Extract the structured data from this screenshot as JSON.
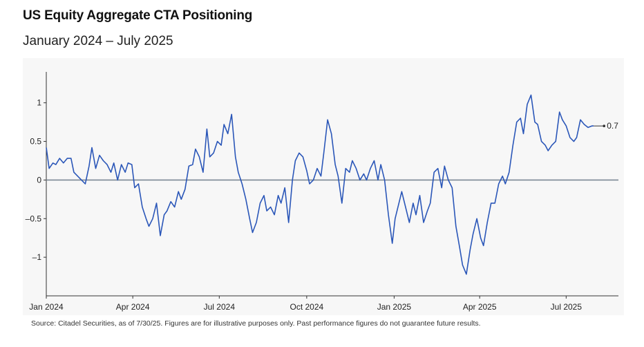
{
  "header": {
    "title": "US Equity Aggregate CTA Positioning",
    "subtitle": "January 2024 – July 2025"
  },
  "source": "Source: Citadel Securities, as of 7/30/25. Figures are for illustrative purposes only. Past performance figures do not guarantee future results.",
  "colors": {
    "line": "#2a56b8",
    "zero_line": "#7a8794",
    "axis": "#333333",
    "panel": "#f7f7f7"
  },
  "chart_data": {
    "type": "line",
    "title": "US Equity Aggregate CTA Positioning",
    "subtitle": "January 2024 – July 2025",
    "xlabel": "",
    "ylabel": "",
    "xlim": [
      "2024-01-01",
      "2025-08-25"
    ],
    "ylim": [
      -1.5,
      1.4
    ],
    "y_ticks": [
      {
        "value": 1,
        "label": "1"
      },
      {
        "value": 0.5,
        "label": "0.5"
      },
      {
        "value": 0,
        "label": "0"
      },
      {
        "value": -0.5,
        "label": "–0.5"
      },
      {
        "value": -1,
        "label": "–1"
      }
    ],
    "x_ticks": [
      {
        "date": "2024-01-01",
        "label": "Jan 2024"
      },
      {
        "date": "2024-04-01",
        "label": "Apr 2024"
      },
      {
        "date": "2024-07-01",
        "label": "Jul 2024"
      },
      {
        "date": "2024-10-01",
        "label": "Oct 2024"
      },
      {
        "date": "2025-01-01",
        "label": "Jan 2025"
      },
      {
        "date": "2025-04-01",
        "label": "Apr 2025"
      },
      {
        "date": "2025-07-01",
        "label": "Jul 2025"
      }
    ],
    "grid": false,
    "reference_line": 0,
    "end_label": {
      "text": "0.7",
      "value": 0.7
    },
    "series": [
      {
        "name": "",
        "points": [
          [
            "2024-01-01",
            0.42
          ],
          [
            "2024-01-04",
            0.15
          ],
          [
            "2024-01-08",
            0.22
          ],
          [
            "2024-01-11",
            0.2
          ],
          [
            "2024-01-15",
            0.28
          ],
          [
            "2024-01-19",
            0.22
          ],
          [
            "2024-01-23",
            0.28
          ],
          [
            "2024-01-27",
            0.28
          ],
          [
            "2024-01-30",
            0.1
          ],
          [
            "2024-02-03",
            0.05
          ],
          [
            "2024-02-07",
            0.0
          ],
          [
            "2024-02-11",
            -0.05
          ],
          [
            "2024-02-15",
            0.18
          ],
          [
            "2024-02-18",
            0.42
          ],
          [
            "2024-02-22",
            0.15
          ],
          [
            "2024-02-26",
            0.32
          ],
          [
            "2024-03-01",
            0.25
          ],
          [
            "2024-03-05",
            0.2
          ],
          [
            "2024-03-09",
            0.1
          ],
          [
            "2024-03-12",
            0.22
          ],
          [
            "2024-03-16",
            0.0
          ],
          [
            "2024-03-20",
            0.2
          ],
          [
            "2024-03-24",
            0.1
          ],
          [
            "2024-03-27",
            0.22
          ],
          [
            "2024-03-31",
            0.2
          ],
          [
            "2024-04-03",
            -0.1
          ],
          [
            "2024-04-07",
            -0.05
          ],
          [
            "2024-04-11",
            -0.35
          ],
          [
            "2024-04-15",
            -0.5
          ],
          [
            "2024-04-18",
            -0.6
          ],
          [
            "2024-04-22",
            -0.5
          ],
          [
            "2024-04-26",
            -0.3
          ],
          [
            "2024-04-30",
            -0.72
          ],
          [
            "2024-05-04",
            -0.45
          ],
          [
            "2024-05-07",
            -0.4
          ],
          [
            "2024-05-11",
            -0.28
          ],
          [
            "2024-05-15",
            -0.35
          ],
          [
            "2024-05-19",
            -0.15
          ],
          [
            "2024-05-22",
            -0.25
          ],
          [
            "2024-05-26",
            -0.12
          ],
          [
            "2024-05-30",
            0.18
          ],
          [
            "2024-06-03",
            0.2
          ],
          [
            "2024-06-06",
            0.4
          ],
          [
            "2024-06-10",
            0.3
          ],
          [
            "2024-06-14",
            0.1
          ],
          [
            "2024-06-18",
            0.66
          ],
          [
            "2024-06-21",
            0.3
          ],
          [
            "2024-06-25",
            0.35
          ],
          [
            "2024-06-29",
            0.5
          ],
          [
            "2024-07-03",
            0.45
          ],
          [
            "2024-07-06",
            0.72
          ],
          [
            "2024-07-10",
            0.6
          ],
          [
            "2024-07-14",
            0.85
          ],
          [
            "2024-07-18",
            0.3
          ],
          [
            "2024-07-21",
            0.1
          ],
          [
            "2024-07-25",
            -0.05
          ],
          [
            "2024-07-29",
            -0.25
          ],
          [
            "2024-08-02",
            -0.5
          ],
          [
            "2024-08-05",
            -0.68
          ],
          [
            "2024-08-09",
            -0.55
          ],
          [
            "2024-08-13",
            -0.3
          ],
          [
            "2024-08-17",
            -0.2
          ],
          [
            "2024-08-20",
            -0.4
          ],
          [
            "2024-08-24",
            -0.35
          ],
          [
            "2024-08-28",
            -0.45
          ],
          [
            "2024-09-01",
            -0.2
          ],
          [
            "2024-09-04",
            -0.3
          ],
          [
            "2024-09-08",
            -0.1
          ],
          [
            "2024-09-12",
            -0.55
          ],
          [
            "2024-09-16",
            0.0
          ],
          [
            "2024-09-19",
            0.25
          ],
          [
            "2024-09-23",
            0.35
          ],
          [
            "2024-09-27",
            0.3
          ],
          [
            "2024-10-01",
            0.12
          ],
          [
            "2024-10-04",
            -0.05
          ],
          [
            "2024-10-08",
            0.0
          ],
          [
            "2024-10-12",
            0.15
          ],
          [
            "2024-10-16",
            0.05
          ],
          [
            "2024-10-19",
            0.35
          ],
          [
            "2024-10-23",
            0.78
          ],
          [
            "2024-10-27",
            0.6
          ],
          [
            "2024-10-31",
            0.2
          ],
          [
            "2024-11-03",
            0.05
          ],
          [
            "2024-11-07",
            -0.3
          ],
          [
            "2024-11-11",
            0.15
          ],
          [
            "2024-11-15",
            0.1
          ],
          [
            "2024-11-18",
            0.25
          ],
          [
            "2024-11-22",
            0.15
          ],
          [
            "2024-11-26",
            0.0
          ],
          [
            "2024-11-30",
            0.08
          ],
          [
            "2024-12-03",
            0.0
          ],
          [
            "2024-12-07",
            0.15
          ],
          [
            "2024-12-11",
            0.25
          ],
          [
            "2024-12-15",
            0.0
          ],
          [
            "2024-12-18",
            0.2
          ],
          [
            "2024-12-22",
            0.0
          ],
          [
            "2024-12-26",
            -0.45
          ],
          [
            "2024-12-30",
            -0.82
          ],
          [
            "2025-01-02",
            -0.5
          ],
          [
            "2025-01-06",
            -0.3
          ],
          [
            "2025-01-09",
            -0.15
          ],
          [
            "2025-01-13",
            -0.35
          ],
          [
            "2025-01-17",
            -0.55
          ],
          [
            "2025-01-21",
            -0.3
          ],
          [
            "2025-01-24",
            -0.45
          ],
          [
            "2025-01-28",
            -0.2
          ],
          [
            "2025-02-01",
            -0.55
          ],
          [
            "2025-02-05",
            -0.4
          ],
          [
            "2025-02-08",
            -0.3
          ],
          [
            "2025-02-12",
            0.1
          ],
          [
            "2025-02-16",
            0.15
          ],
          [
            "2025-02-20",
            -0.1
          ],
          [
            "2025-02-23",
            0.18
          ],
          [
            "2025-02-27",
            0.0
          ],
          [
            "2025-03-03",
            -0.1
          ],
          [
            "2025-03-07",
            -0.6
          ],
          [
            "2025-03-11",
            -0.88
          ],
          [
            "2025-03-14",
            -1.1
          ],
          [
            "2025-03-18",
            -1.22
          ],
          [
            "2025-03-22",
            -0.9
          ],
          [
            "2025-03-25",
            -0.7
          ],
          [
            "2025-03-29",
            -0.5
          ],
          [
            "2025-04-02",
            -0.75
          ],
          [
            "2025-04-05",
            -0.85
          ],
          [
            "2025-04-09",
            -0.55
          ],
          [
            "2025-04-13",
            -0.3
          ],
          [
            "2025-04-17",
            -0.3
          ],
          [
            "2025-04-21",
            -0.05
          ],
          [
            "2025-04-25",
            0.05
          ],
          [
            "2025-04-28",
            -0.05
          ],
          [
            "2025-05-02",
            0.1
          ],
          [
            "2025-05-06",
            0.45
          ],
          [
            "2025-05-10",
            0.75
          ],
          [
            "2025-05-14",
            0.8
          ],
          [
            "2025-05-17",
            0.6
          ],
          [
            "2025-05-21",
            0.98
          ],
          [
            "2025-05-25",
            1.1
          ],
          [
            "2025-05-29",
            0.75
          ],
          [
            "2025-06-01",
            0.72
          ],
          [
            "2025-06-05",
            0.5
          ],
          [
            "2025-06-09",
            0.45
          ],
          [
            "2025-06-12",
            0.38
          ],
          [
            "2025-06-16",
            0.45
          ],
          [
            "2025-06-20",
            0.5
          ],
          [
            "2025-06-24",
            0.88
          ],
          [
            "2025-06-27",
            0.78
          ],
          [
            "2025-07-01",
            0.7
          ],
          [
            "2025-07-05",
            0.55
          ],
          [
            "2025-07-09",
            0.5
          ],
          [
            "2025-07-12",
            0.55
          ],
          [
            "2025-07-16",
            0.78
          ],
          [
            "2025-07-20",
            0.72
          ],
          [
            "2025-07-24",
            0.68
          ],
          [
            "2025-07-28",
            0.7
          ],
          [
            "2025-07-30",
            0.7
          ]
        ]
      }
    ]
  }
}
